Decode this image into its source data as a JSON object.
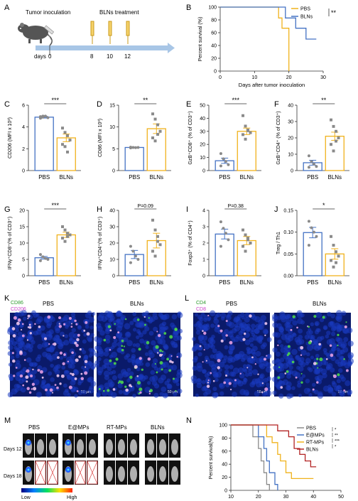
{
  "colors": {
    "pbs": "#4472c4",
    "bln": "#f0b21c",
    "axis": "#333333",
    "dot": "#8a8a8a"
  },
  "panels": {
    "A": {
      "letter": "A",
      "inoculation": "Tumor inoculation",
      "treatment": "BLNs treatment",
      "days_label": "days",
      "ticks": [
        "0",
        "8",
        "10",
        "12"
      ]
    },
    "K": {
      "letter": "K",
      "legend1": "CD86",
      "legend2": "CD206",
      "left": "PBS",
      "right": "BLNs",
      "scale": "50 μm"
    },
    "L": {
      "letter": "L",
      "legend1": "CD4",
      "legend2": "CD8",
      "left": "PBS",
      "right": "BLNs",
      "scale": "50 μm"
    },
    "M": {
      "letter": "M",
      "groups": [
        "PBS",
        "E@MPs",
        "RT-MPs",
        "BLNs"
      ],
      "rows": [
        "Days 12",
        "Days 18"
      ],
      "low": "Low",
      "high": "High"
    }
  },
  "chart_data": [
    {
      "id": "B",
      "type": "line",
      "letter": "B",
      "xlabel": "Days after  tumor inoculation",
      "ylabel": "Percent survival (%)",
      "xlim": [
        0,
        30
      ],
      "ylim": [
        0,
        100
      ],
      "xticks": [
        "0",
        "10",
        "20",
        "30"
      ],
      "yticks": [
        "0",
        "20",
        "40",
        "60",
        "80",
        "100"
      ],
      "significance": "**",
      "series": [
        {
          "name": "PBS",
          "color": "#f0b21c",
          "x": [
            0,
            17,
            17,
            18,
            18,
            20,
            20
          ],
          "y": [
            100,
            100,
            83,
            83,
            67,
            67,
            0
          ]
        },
        {
          "name": "BLNs",
          "color": "#4472c4",
          "x": [
            0,
            19,
            19,
            22,
            22,
            25,
            25,
            28
          ],
          "y": [
            100,
            100,
            83,
            83,
            67,
            67,
            50,
            50
          ]
        }
      ]
    },
    {
      "id": "C",
      "type": "bar",
      "letter": "C",
      "ylabel": "CD206 (MFI x 10³)",
      "categories": [
        "PBS",
        "BLNs"
      ],
      "ylim": [
        0,
        6
      ],
      "yticks": [
        "0",
        "2",
        "4",
        "6"
      ],
      "values": [
        4.9,
        3.0
      ],
      "errors": [
        0.08,
        0.35
      ],
      "significance": "***",
      "points": [
        [
          4.8,
          4.9,
          5.0,
          4.85,
          4.95,
          5.0
        ],
        [
          3.9,
          3.5,
          3.2,
          2.8,
          2.4,
          2.2,
          1.7
        ]
      ]
    },
    {
      "id": "D",
      "type": "bar",
      "letter": "D",
      "ylabel": "CD86 (MFI x 10³)",
      "categories": [
        "PBS",
        "BLNs"
      ],
      "ylim": [
        0,
        15
      ],
      "yticks": [
        "0",
        "5",
        "10",
        "15"
      ],
      "values": [
        5.3,
        9.6
      ],
      "errors": [
        0.05,
        1.1
      ],
      "significance": "**",
      "points": [
        [
          5.2,
          5.3,
          5.25,
          5.3,
          5.35
        ],
        [
          13.0,
          11.8,
          10.5,
          9.0,
          7.5,
          6.8,
          8.3
        ]
      ]
    },
    {
      "id": "E",
      "type": "bar",
      "letter": "E",
      "ylabel": "GzB⁺CD8⁺ (% of CD3⁺)",
      "categories": [
        "PBS",
        "BLNs"
      ],
      "ylim": [
        0,
        50
      ],
      "yticks": [
        "0",
        "10",
        "20",
        "30",
        "40",
        "50"
      ],
      "values": [
        7.5,
        30.0
      ],
      "errors": [
        2.0,
        2.5
      ],
      "significance": "***",
      "points": [
        [
          13.0,
          9.0,
          7.0,
          4.5,
          3.5
        ],
        [
          42.0,
          34.0,
          31.0,
          29.0,
          27.5,
          24.0,
          30.5
        ]
      ]
    },
    {
      "id": "F",
      "type": "bar",
      "letter": "F",
      "ylabel": "GzB⁺CD4⁺ (% of CD3⁺)",
      "categories": [
        "PBS",
        "BLNs"
      ],
      "ylim": [
        0,
        40
      ],
      "yticks": [
        "0",
        "10",
        "20",
        "30",
        "40"
      ],
      "values": [
        4.8,
        21.0
      ],
      "errors": [
        1.5,
        2.5
      ],
      "significance": "**",
      "points": [
        [
          9.0,
          5.5,
          4.0,
          2.5,
          2.0
        ],
        [
          31.0,
          27.0,
          24.0,
          20.0,
          16.0,
          12.0,
          18.0
        ]
      ]
    },
    {
      "id": "G",
      "type": "bar",
      "letter": "G",
      "ylabel": "IFNγ⁺CD8⁺(% of CD3⁺)",
      "categories": [
        "PBS",
        "BLNs"
      ],
      "ylim": [
        0,
        20
      ],
      "yticks": [
        "0",
        "5",
        "10",
        "15",
        "20"
      ],
      "values": [
        5.5,
        12.5
      ],
      "errors": [
        0.4,
        0.8
      ],
      "significance": "***",
      "points": [
        [
          6.5,
          5.8,
          5.3,
          5.0,
          4.6
        ],
        [
          15.0,
          14.0,
          13.0,
          12.5,
          11.5,
          10.5,
          12.0
        ]
      ]
    },
    {
      "id": "H",
      "type": "bar",
      "letter": "H",
      "ylabel": "IFNγ⁺CD4⁺(% of CD3⁺)",
      "categories": [
        "PBS",
        "BLNs"
      ],
      "ylim": [
        0,
        40
      ],
      "yticks": [
        "0",
        "10",
        "20",
        "30",
        "40"
      ],
      "values": [
        13.0,
        21.5
      ],
      "errors": [
        2.5,
        4.5
      ],
      "significance": "P=0.09",
      "points": [
        [
          18.0,
          15.0,
          12.0,
          10.0,
          8.0
        ],
        [
          34.0,
          28.0,
          24.0,
          19.0,
          15.0,
          12.0,
          21.0
        ]
      ]
    },
    {
      "id": "I",
      "type": "bar",
      "letter": "I",
      "ylabel": "Foxp3⁺ (% of CD4⁺)",
      "categories": [
        "PBS",
        "BLNs"
      ],
      "ylim": [
        0,
        4
      ],
      "yticks": [
        "0",
        "1",
        "2",
        "3",
        "4"
      ],
      "values": [
        2.55,
        2.15
      ],
      "errors": [
        0.3,
        0.25
      ],
      "significance": "P=0.38",
      "points": [
        [
          3.3,
          2.9,
          2.6,
          2.2,
          1.8
        ],
        [
          2.8,
          2.5,
          2.3,
          2.0,
          1.8,
          1.5,
          2.2
        ]
      ]
    },
    {
      "id": "J",
      "type": "bar",
      "letter": "J",
      "ylabel": "Treg / Th1",
      "categories": [
        "PBS",
        "BLNs"
      ],
      "ylim": [
        0,
        0.15
      ],
      "yticks": [
        "0.00",
        "0.05",
        "0.10",
        "0.15"
      ],
      "values": [
        0.099,
        0.05
      ],
      "errors": [
        0.012,
        0.012
      ],
      "significance": "*",
      "points": [
        [
          0.125,
          0.11,
          0.1,
          0.09,
          0.07
        ],
        [
          0.09,
          0.07,
          0.055,
          0.045,
          0.035,
          0.02,
          0.03
        ]
      ]
    },
    {
      "id": "N",
      "type": "line",
      "letter": "N",
      "xlabel": "Days after tumor inoculation",
      "ylabel": "Percent survival(%)",
      "xlim": [
        10,
        50
      ],
      "ylim": [
        0,
        100
      ],
      "xticks": [
        "10",
        "20",
        "30",
        "40",
        "50"
      ],
      "yticks": [
        "0",
        "20",
        "40",
        "60",
        "80",
        "100"
      ],
      "significance": [
        "*",
        "**",
        "***",
        "*"
      ],
      "series": [
        {
          "name": "PBS",
          "color": "#8a8a8a",
          "x": [
            10,
            18,
            18,
            20,
            20,
            21,
            21,
            22,
            22,
            23,
            23,
            24,
            24
          ],
          "y": [
            100,
            100,
            82,
            82,
            64,
            64,
            45,
            45,
            27,
            27,
            9,
            9,
            0
          ]
        },
        {
          "name": "E@MPs",
          "color": "#4472c4",
          "x": [
            10,
            20,
            20,
            22,
            22,
            23,
            23,
            24,
            24,
            26,
            26,
            27,
            27
          ],
          "y": [
            100,
            100,
            82,
            82,
            64,
            64,
            45,
            45,
            27,
            27,
            9,
            9,
            0
          ]
        },
        {
          "name": "RT-MPs",
          "color": "#f0b21c",
          "x": [
            10,
            23,
            23,
            25,
            25,
            27,
            27,
            28,
            28,
            30,
            30,
            32,
            32,
            40
          ],
          "y": [
            100,
            100,
            82,
            82,
            73,
            73,
            55,
            55,
            45,
            45,
            27,
            27,
            18,
            18
          ]
        },
        {
          "name": "BLNs",
          "color": "#b22222",
          "x": [
            10,
            27,
            27,
            31,
            31,
            33,
            33,
            35,
            35,
            37,
            37,
            39,
            39,
            41
          ],
          "y": [
            100,
            100,
            91,
            91,
            82,
            82,
            64,
            64,
            55,
            55,
            45,
            45,
            36,
            36
          ]
        }
      ]
    }
  ]
}
